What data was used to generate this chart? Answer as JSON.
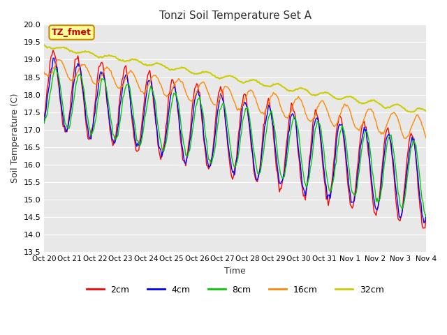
{
  "title": "Tonzi Soil Temperature Set A",
  "xlabel": "Time",
  "ylabel": "Soil Temperature (C)",
  "ylim": [
    13.5,
    20.0
  ],
  "xtick_labels": [
    "Oct 20",
    "Oct 21",
    "Oct 22",
    "Oct 23",
    "Oct 24",
    "Oct 25",
    "Oct 26",
    "Oct 27",
    "Oct 28",
    "Oct 29",
    "Oct 30",
    "Oct 31",
    "Nov 1",
    "Nov 2",
    "Nov 3",
    "Nov 4"
  ],
  "legend_labels": [
    "2cm",
    "4cm",
    "8cm",
    "16cm",
    "32cm"
  ],
  "legend_colors": [
    "#ff0000",
    "#0000ff",
    "#00cc00",
    "#ff8800",
    "#cccc00"
  ],
  "bg_color": "#e8e8e8",
  "annotation_text": "TZ_fmet",
  "annotation_color": "#cc0000",
  "annotation_bg": "#ffff99",
  "n_points": 384,
  "days": 16
}
